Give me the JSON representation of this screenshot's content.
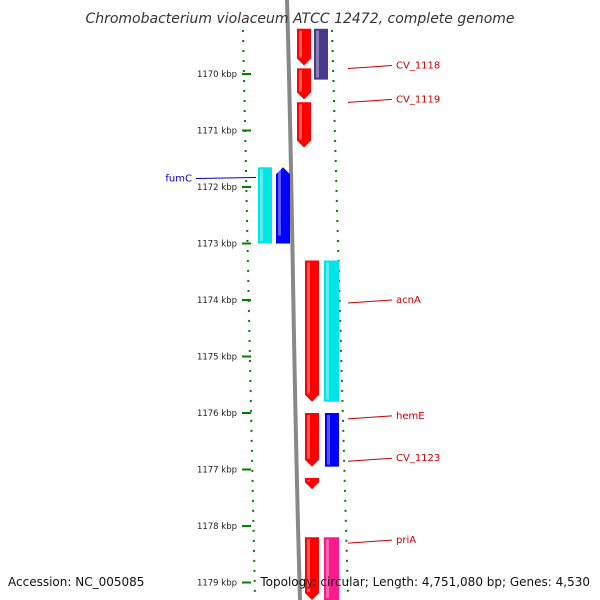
{
  "title": "Chromobacterium violaceum ATCC 12472, complete genome",
  "accession": "Accession: NC_005085",
  "topology": "Topology: circular; Length: 4,751,080 bp; Genes: 4,530",
  "ticks": [
    {
      "label": "1170 kbp",
      "kbp": 1170
    },
    {
      "label": "1171 kbp",
      "kbp": 1171
    },
    {
      "label": "1172 kbp",
      "kbp": 1172
    },
    {
      "label": "1173 kbp",
      "kbp": 1173
    },
    {
      "label": "1174 kbp",
      "kbp": 1174
    },
    {
      "label": "1175 kbp",
      "kbp": 1175
    },
    {
      "label": "1176 kbp",
      "kbp": 1176
    },
    {
      "label": "1177 kbp",
      "kbp": 1177
    },
    {
      "label": "1178 kbp",
      "kbp": 1178
    },
    {
      "label": "1179 kbp",
      "kbp": 1179
    }
  ],
  "colors": {
    "backbone": "#888888",
    "cds_red": "#ff0000",
    "cyan": "#00e5e5",
    "blue": "#0000ff",
    "purple": "#4b3a8c",
    "magenta": "#ff1a8c",
    "tick_green": "#008000",
    "label_red": "#cc0000",
    "label_blue": "#0000cc"
  },
  "features": [
    {
      "track": "red-left",
      "start": 1169.2,
      "end": 1169.85,
      "color": "cds_red",
      "dir": "down"
    },
    {
      "track": "purple",
      "start": 1169.2,
      "end": 1170.1,
      "color": "purple",
      "dir": "none"
    },
    {
      "track": "red-left",
      "start": 1169.9,
      "end": 1170.45,
      "color": "cds_red",
      "dir": "down"
    },
    {
      "track": "red-left",
      "start": 1170.5,
      "end": 1171.3,
      "color": "cds_red",
      "dir": "down"
    },
    {
      "track": "cyan-left",
      "start": 1171.65,
      "end": 1173.0,
      "color": "cyan",
      "dir": "none"
    },
    {
      "track": "blue-left",
      "start": 1171.65,
      "end": 1173.0,
      "color": "blue",
      "dir": "up"
    },
    {
      "track": "red-main",
      "start": 1173.3,
      "end": 1175.8,
      "color": "cds_red",
      "dir": "down"
    },
    {
      "track": "cyan-right",
      "start": 1173.3,
      "end": 1175.8,
      "color": "cyan",
      "dir": "none"
    },
    {
      "track": "red-main",
      "start": 1176.0,
      "end": 1176.95,
      "color": "cds_red",
      "dir": "down"
    },
    {
      "track": "blue-right",
      "start": 1176.0,
      "end": 1176.95,
      "color": "blue",
      "dir": "none"
    },
    {
      "track": "red-main",
      "start": 1177.15,
      "end": 1177.35,
      "color": "cds_red",
      "dir": "down"
    },
    {
      "track": "red-main",
      "start": 1178.2,
      "end": 1179.4,
      "color": "cds_red",
      "dir": "down"
    },
    {
      "track": "magenta",
      "start": 1178.2,
      "end": 1179.4,
      "color": "magenta",
      "dir": "none"
    }
  ],
  "gene_labels": [
    {
      "text": "CV_1118",
      "kbp": 1169.85,
      "side": "right",
      "color": "label_red"
    },
    {
      "text": "CV_1119",
      "kbp": 1170.45,
      "side": "right",
      "color": "label_red"
    },
    {
      "text": "fumC",
      "kbp": 1171.85,
      "side": "left",
      "color": "label_blue"
    },
    {
      "text": "acnA",
      "kbp": 1174.0,
      "side": "right",
      "color": "label_red"
    },
    {
      "text": "hemE",
      "kbp": 1176.05,
      "side": "right",
      "color": "label_red"
    },
    {
      "text": "CV_1123",
      "kbp": 1176.8,
      "side": "right",
      "color": "label_red"
    },
    {
      "text": "priA",
      "kbp": 1178.25,
      "side": "right",
      "color": "label_red"
    }
  ]
}
